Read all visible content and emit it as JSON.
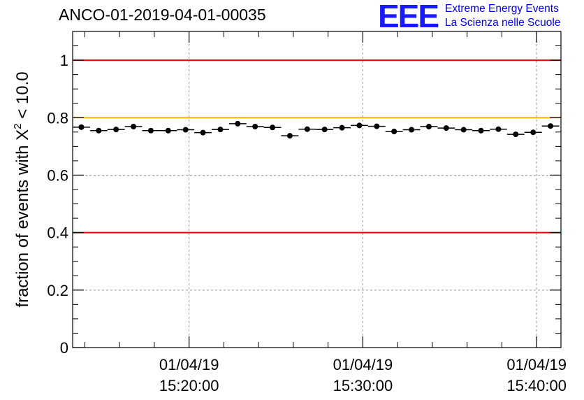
{
  "header": {
    "run_title": "ANCO-01-2019-04-01-00035",
    "logo_mark": "EEE",
    "logo_line1": "Extreme Energy Events",
    "logo_line2": "La Scienza nelle Scuole"
  },
  "colors": {
    "threshold_red": "#e8000b",
    "threshold_orange": "#ffb400",
    "grid": "#9a9a9a",
    "marker": "#000000",
    "logo": "#1a1aff"
  },
  "chart_data": {
    "type": "scatter",
    "title": "ANCO-01-2019-04-01-00035",
    "ylabel_prefix": "fraction of events with ",
    "ylabel_symbol": "X",
    "ylabel_superscript": "2",
    "ylabel_suffix": " < 10.0",
    "xlabel": "",
    "x_unit": "minutes after 15:00:00 on 01/04/19",
    "xlim": [
      13.3,
      41.4
    ],
    "ylim": [
      0,
      1.1
    ],
    "y_ticks": [
      0,
      0.2,
      0.4,
      0.6,
      0.8,
      1
    ],
    "y_tick_labels": [
      "0",
      "0.2",
      "0.4",
      "0.6",
      "0.8",
      "1"
    ],
    "x_major_ticks": [
      20,
      30,
      40
    ],
    "x_tick_labels": [
      {
        "date": "01/04/19",
        "time": "15:20:00"
      },
      {
        "date": "01/04/19",
        "time": "15:30:00"
      },
      {
        "date": "01/04/19",
        "time": "15:40:00"
      }
    ],
    "x_minor_step": 2,
    "grid": true,
    "bin_width": 1.0,
    "reference_lines": [
      {
        "y": 1.0,
        "color": "red"
      },
      {
        "y": 0.8,
        "color": "orange"
      },
      {
        "y": 0.4,
        "color": "red"
      }
    ],
    "x": [
      13.8,
      14.8,
      15.8,
      16.8,
      17.8,
      18.8,
      19.8,
      20.8,
      21.8,
      22.8,
      23.8,
      24.8,
      25.8,
      26.8,
      27.8,
      28.8,
      29.8,
      30.8,
      31.8,
      32.8,
      33.8,
      34.8,
      35.8,
      36.8,
      37.8,
      38.8,
      39.8,
      40.8
    ],
    "values": [
      0.767,
      0.755,
      0.759,
      0.769,
      0.755,
      0.755,
      0.758,
      0.748,
      0.759,
      0.779,
      0.769,
      0.766,
      0.737,
      0.76,
      0.759,
      0.765,
      0.773,
      0.77,
      0.752,
      0.758,
      0.769,
      0.764,
      0.758,
      0.755,
      0.76,
      0.742,
      0.749,
      0.771
    ]
  }
}
